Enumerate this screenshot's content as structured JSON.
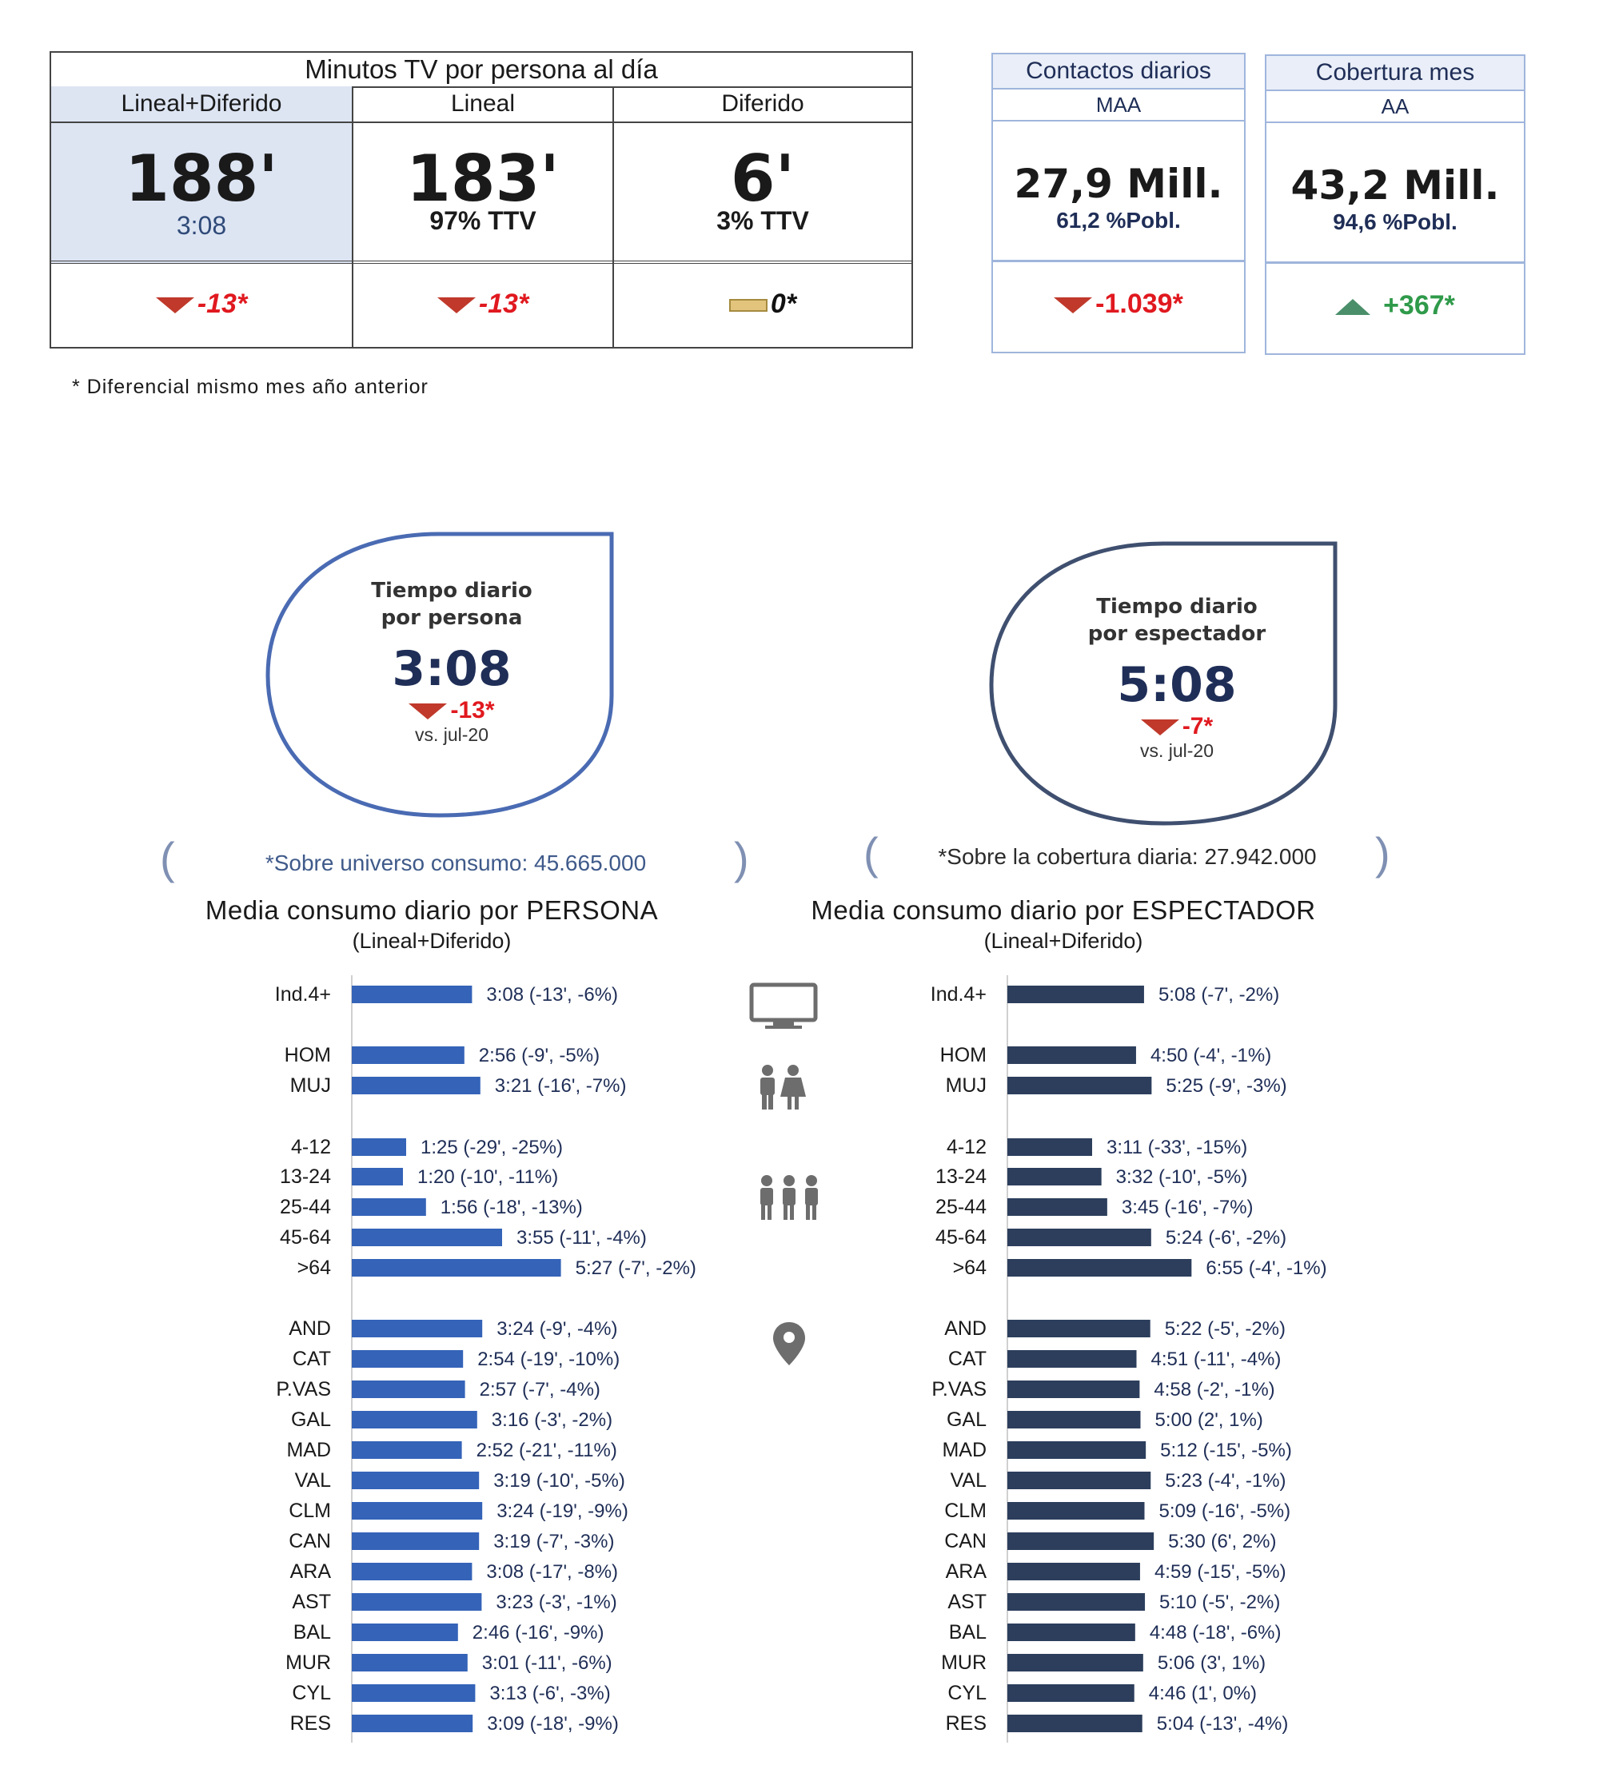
{
  "kpi": {
    "title": "Minutos TV por persona al día",
    "columns": [
      {
        "header": "Lineal+Diferido",
        "value": "188'",
        "sub": "3:08",
        "variation": "-13*",
        "trend": "down"
      },
      {
        "header": "Lineal",
        "value": "183'",
        "sub": "97% TTV",
        "variation": "-13*",
        "trend": "down"
      },
      {
        "header": "Diferido",
        "value": "6'",
        "sub": "3% TTV",
        "variation": "0*",
        "trend": "flat"
      }
    ]
  },
  "contacts": {
    "title": "Contactos diarios",
    "sub": "MAA",
    "value": "27,9 Mill.",
    "pct": "61,2 %Pobl.",
    "variation": "-1.039*",
    "trend": "down"
  },
  "coverage": {
    "title": "Cobertura mes",
    "sub": "AA",
    "value": "43,2 Mill.",
    "pct": "94,6 %Pobl.",
    "variation": "+367*",
    "trend": "up"
  },
  "footnote": "* Diferencial  mismo mes año anterior",
  "drops": [
    {
      "label1": "Tiempo diario",
      "label2": "por persona",
      "value": "3:08",
      "variation": "-13*",
      "vs": "vs. jul-20"
    },
    {
      "label1": "Tiempo diario",
      "label2": "por espectador",
      "value": "5:08",
      "variation": "-7*",
      "vs": "vs. jul-20"
    }
  ],
  "universe_left": "*Sobre universo consumo: 45.665.000",
  "universe_right": "*Sobre la cobertura diaria: 27.942.000",
  "colors": {
    "persona_bar": "#3463b8",
    "espectador_bar": "#2c3e5c",
    "down": "#c0392b",
    "up": "#4a8f6a",
    "accent": "#1f2e57"
  },
  "icons": [
    "tv-icon",
    "couple-icon",
    "group-icon",
    "location-pin-icon"
  ],
  "chart_data": [
    {
      "type": "bar",
      "orientation": "horizontal",
      "title": "Media consumo diario por PERSONA",
      "subtitle": "(Lineal+Diferido)",
      "unit": "minutes",
      "categories": [
        "Ind.4+",
        "HOM",
        "MUJ",
        "4-12",
        "13-24",
        "25-44",
        "45-64",
        ">64",
        "AND",
        "CAT",
        "P.VAS",
        "GAL",
        "MAD",
        "VAL",
        "CLM",
        "CAN",
        "ARA",
        "AST",
        "BAL",
        "MUR",
        "CYL",
        "RES"
      ],
      "groups": [
        [
          0
        ],
        [
          1,
          2
        ],
        [
          3,
          4,
          5,
          6,
          7
        ],
        [
          8,
          9,
          10,
          11,
          12,
          13,
          14,
          15,
          16,
          17,
          18,
          19,
          20,
          21
        ]
      ],
      "values": [
        188,
        176,
        201,
        85,
        80,
        116,
        235,
        327,
        204,
        174,
        177,
        196,
        172,
        199,
        204,
        199,
        188,
        203,
        166,
        181,
        193,
        189
      ],
      "labels": [
        "3:08 (-13', -6%)",
        "2:56 (-9', -5%)",
        "3:21 (-16', -7%)",
        "1:25 (-29', -25%)",
        "1:20 (-10', -11%)",
        "1:56 (-18', -13%)",
        "3:55 (-11', -4%)",
        "5:27 (-7', -2%)",
        "3:24 (-9', -4%)",
        "2:54 (-19', -10%)",
        "2:57 (-7', -4%)",
        "3:16 (-3', -2%)",
        "2:52 (-21', -11%)",
        "3:19 (-10', -5%)",
        "3:24 (-19', -9%)",
        "3:19 (-7', -3%)",
        "3:08 (-17', -8%)",
        "3:23 (-3', -1%)",
        "2:46 (-16', -9%)",
        "3:01 (-11', -6%)",
        "3:13 (-6', -3%)",
        "3:09 (-18', -9%)"
      ]
    },
    {
      "type": "bar",
      "orientation": "horizontal",
      "title": "Media consumo diario por ESPECTADOR",
      "subtitle": "(Lineal+Diferido)",
      "unit": "minutes",
      "categories": [
        "Ind.4+",
        "HOM",
        "MUJ",
        "4-12",
        "13-24",
        "25-44",
        "45-64",
        ">64",
        "AND",
        "CAT",
        "P.VAS",
        "GAL",
        "MAD",
        "VAL",
        "CLM",
        "CAN",
        "ARA",
        "AST",
        "BAL",
        "MUR",
        "CYL",
        "RES"
      ],
      "groups": [
        [
          0
        ],
        [
          1,
          2
        ],
        [
          3,
          4,
          5,
          6,
          7
        ],
        [
          8,
          9,
          10,
          11,
          12,
          13,
          14,
          15,
          16,
          17,
          18,
          19,
          20,
          21
        ]
      ],
      "values": [
        308,
        290,
        325,
        191,
        212,
        225,
        324,
        415,
        322,
        291,
        298,
        300,
        312,
        323,
        309,
        330,
        299,
        310,
        288,
        306,
        286,
        304
      ],
      "labels": [
        "5:08 (-7', -2%)",
        "4:50 (-4', -1%)",
        "5:25 (-9', -3%)",
        "3:11 (-33', -15%)",
        "3:32 (-10', -5%)",
        "3:45 (-16', -7%)",
        "5:24 (-6', -2%)",
        "6:55 (-4', -1%)",
        "5:22 (-5', -2%)",
        "4:51 (-11', -4%)",
        "4:58 (-2', -1%)",
        "5:00 (2', 1%)",
        "5:12 (-15', -5%)",
        "5:23 (-4', -1%)",
        "5:09 (-16', -5%)",
        "5:30 (6', 2%)",
        "4:59 (-15', -5%)",
        "5:10 (-5', -2%)",
        "4:48 (-18', -6%)",
        "5:06 (3', 1%)",
        "4:46 (1', 0%)",
        "5:04 (-13', -4%)"
      ]
    }
  ]
}
